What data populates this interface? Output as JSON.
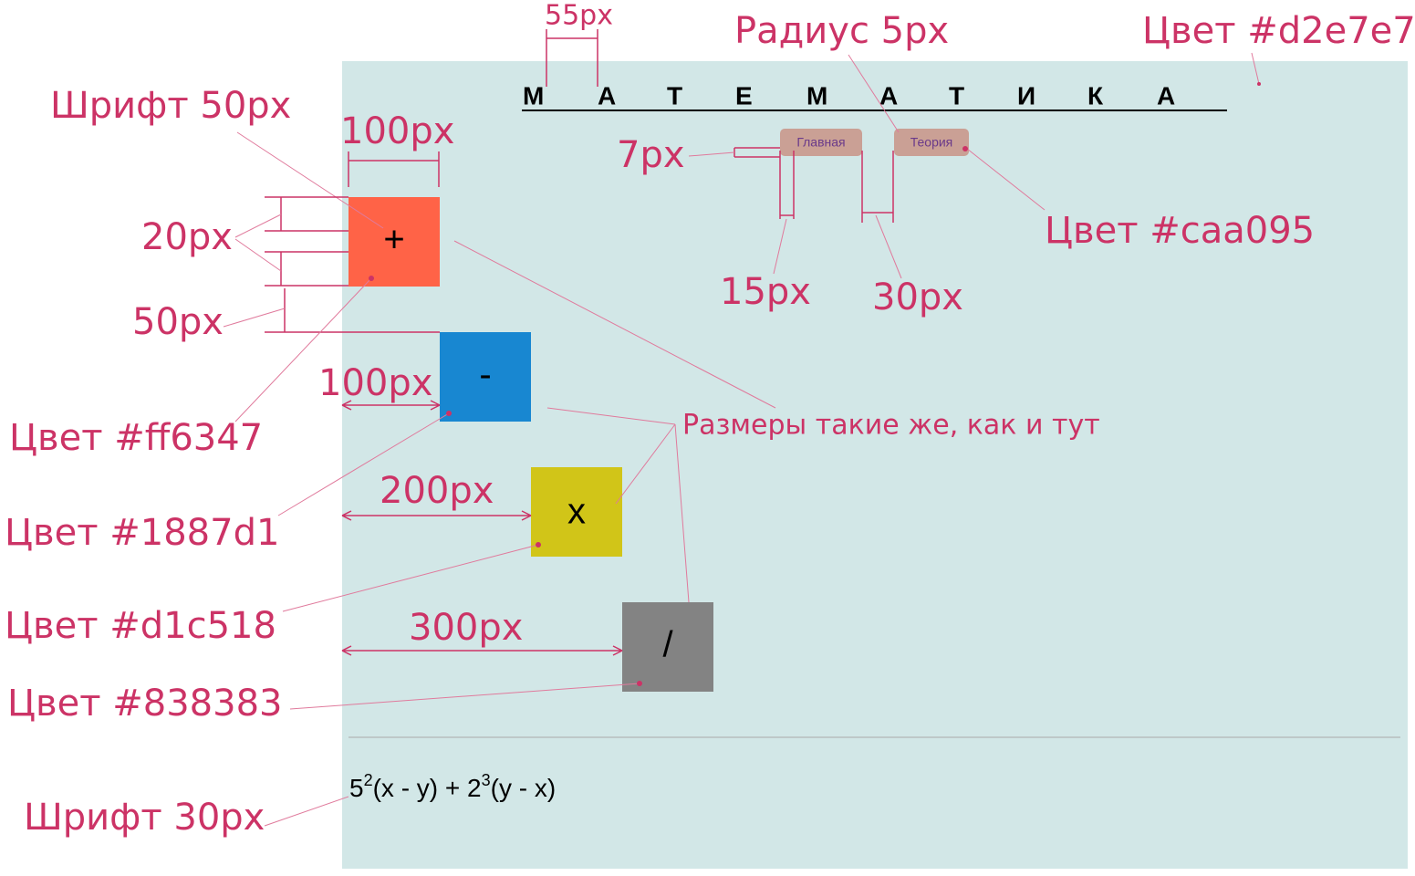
{
  "page": {
    "title_letters": [
      "М",
      "А",
      "Т",
      "Е",
      "М",
      "А",
      "Т",
      "И",
      "К",
      "А"
    ],
    "nav": [
      "Главная",
      "Теория"
    ],
    "buttons": [
      "+",
      "-",
      "x",
      "/"
    ],
    "formula": [
      "5",
      "2",
      "(x - y) + 2",
      "3",
      "(y - x)"
    ]
  },
  "annotations": [
    "55px",
    "Радиус 5px",
    "Цвет #d2e7e7",
    "Шрифт 50px",
    "100px",
    "7px",
    "Цвет #caa095",
    "20px",
    "15px",
    "30px",
    "50px",
    "100px",
    "Размеры такие же, как и тут",
    "Цвет #ff6347",
    "200px",
    "Цвет #1887d1",
    "Цвет #d1c518",
    "300px",
    "Цвет #838383",
    "Шрифт 30px"
  ]
}
